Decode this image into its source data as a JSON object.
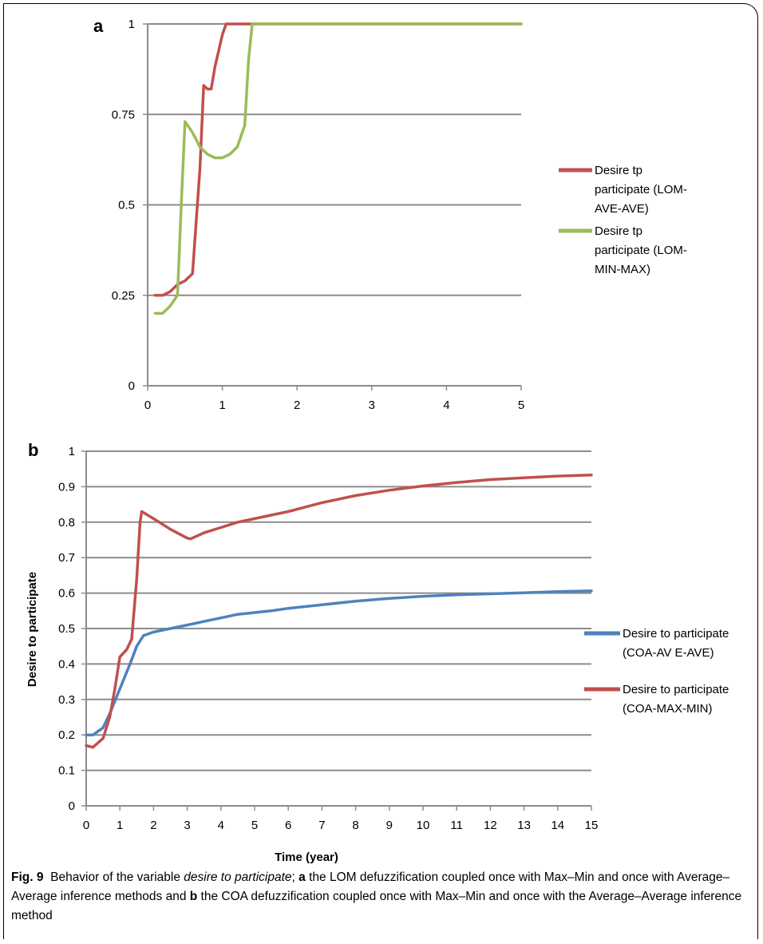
{
  "chart_data": [
    {
      "panel_label": "a",
      "type": "line",
      "xlim": [
        0,
        5
      ],
      "ylim": [
        0,
        1
      ],
      "x_ticks": [
        "0",
        "1",
        "2",
        "3",
        "4",
        "5"
      ],
      "y_ticks": [
        "0",
        "0.25",
        "0.5",
        "0.75",
        "1"
      ],
      "xlabel": "",
      "ylabel": "",
      "grid": "horizontal",
      "legend_position": "right",
      "series": [
        {
          "name": "Desire tp participate (LOM-AVE-AVE)",
          "legend_lines": [
            "Desire tp",
            "participate (LOM-",
            "AVE-AVE)"
          ],
          "color": "#c0504d",
          "points": [
            [
              0.1,
              0.25
            ],
            [
              0.2,
              0.25
            ],
            [
              0.3,
              0.26
            ],
            [
              0.4,
              0.28
            ],
            [
              0.5,
              0.29
            ],
            [
              0.6,
              0.31
            ],
            [
              0.7,
              0.6
            ],
            [
              0.75,
              0.83
            ],
            [
              0.8,
              0.82
            ],
            [
              0.85,
              0.82
            ],
            [
              0.9,
              0.88
            ],
            [
              1.0,
              0.97
            ],
            [
              1.05,
              1.0
            ],
            [
              1.2,
              1.0
            ],
            [
              1.4,
              1.0
            ],
            [
              5.0,
              1.0
            ]
          ]
        },
        {
          "name": "Desire tp participate (LOM-MIN-MAX)",
          "legend_lines": [
            "Desire tp",
            "participate (LOM-",
            "MIN-MAX)"
          ],
          "color": "#9bbb59",
          "points": [
            [
              0.1,
              0.2
            ],
            [
              0.2,
              0.2
            ],
            [
              0.3,
              0.22
            ],
            [
              0.4,
              0.25
            ],
            [
              0.45,
              0.5
            ],
            [
              0.5,
              0.73
            ],
            [
              0.6,
              0.7
            ],
            [
              0.7,
              0.66
            ],
            [
              0.8,
              0.64
            ],
            [
              0.9,
              0.63
            ],
            [
              1.0,
              0.63
            ],
            [
              1.1,
              0.64
            ],
            [
              1.2,
              0.66
            ],
            [
              1.3,
              0.72
            ],
            [
              1.35,
              0.9
            ],
            [
              1.4,
              1.0
            ],
            [
              5.0,
              1.0
            ]
          ]
        }
      ]
    },
    {
      "panel_label": "b",
      "type": "line",
      "xlim": [
        0,
        15
      ],
      "ylim": [
        0,
        1
      ],
      "x_ticks": [
        "0",
        "1",
        "2",
        "3",
        "4",
        "5",
        "6",
        "7",
        "8",
        "9",
        "10",
        "11",
        "12",
        "13",
        "14",
        "15"
      ],
      "y_ticks": [
        "0",
        "0.1",
        "0.2",
        "0.3",
        "0.4",
        "0.5",
        "0.6",
        "0.7",
        "0.8",
        "0.9",
        "1"
      ],
      "xlabel": "Time (year)",
      "ylabel": "Desire to participate",
      "grid": "horizontal",
      "legend_position": "right",
      "series": [
        {
          "name": "Desire to participate (COA-AVE-AVE)",
          "legend_lines": [
            "Desire to participate",
            "(COA-AV E-AVE)"
          ],
          "color": "#4f81bd",
          "points": [
            [
              0,
              0.2
            ],
            [
              0.2,
              0.2
            ],
            [
              0.5,
              0.22
            ],
            [
              0.7,
              0.26
            ],
            [
              1.0,
              0.33
            ],
            [
              1.3,
              0.4
            ],
            [
              1.5,
              0.45
            ],
            [
              1.7,
              0.48
            ],
            [
              2,
              0.49
            ],
            [
              2.5,
              0.5
            ],
            [
              3,
              0.51
            ],
            [
              3.5,
              0.52
            ],
            [
              4,
              0.53
            ],
            [
              4.5,
              0.54
            ],
            [
              5,
              0.545
            ],
            [
              5.5,
              0.55
            ],
            [
              6,
              0.557
            ],
            [
              7,
              0.567
            ],
            [
              8,
              0.577
            ],
            [
              9,
              0.585
            ],
            [
              10,
              0.591
            ],
            [
              11,
              0.595
            ],
            [
              12,
              0.598
            ],
            [
              13,
              0.601
            ],
            [
              14,
              0.604
            ],
            [
              15,
              0.606
            ]
          ]
        },
        {
          "name": "Desire to participate (COA-MAX-MIN)",
          "legend_lines": [
            "Desire to participate",
            "(COA-MAX-MIN)"
          ],
          "color": "#c0504d",
          "points": [
            [
              0,
              0.17
            ],
            [
              0.2,
              0.165
            ],
            [
              0.5,
              0.19
            ],
            [
              0.7,
              0.25
            ],
            [
              0.85,
              0.33
            ],
            [
              1.0,
              0.42
            ],
            [
              1.2,
              0.44
            ],
            [
              1.35,
              0.47
            ],
            [
              1.5,
              0.64
            ],
            [
              1.6,
              0.8
            ],
            [
              1.65,
              0.83
            ],
            [
              2,
              0.81
            ],
            [
              2.5,
              0.78
            ],
            [
              3,
              0.755
            ],
            [
              3.1,
              0.753
            ],
            [
              3.5,
              0.77
            ],
            [
              4,
              0.785
            ],
            [
              4.5,
              0.8
            ],
            [
              5,
              0.81
            ],
            [
              6,
              0.83
            ],
            [
              7,
              0.855
            ],
            [
              8,
              0.875
            ],
            [
              9,
              0.89
            ],
            [
              10,
              0.902
            ],
            [
              11,
              0.912
            ],
            [
              12,
              0.92
            ],
            [
              13,
              0.925
            ],
            [
              14,
              0.93
            ],
            [
              15,
              0.933
            ]
          ]
        }
      ]
    }
  ],
  "caption": {
    "fig_label": "Fig. 9",
    "part1": "Behavior of the variable ",
    "italic": "desire to participate",
    "part2": "; ",
    "a_label": "a",
    "part3": " the LOM defuzzification coupled once with Max–Min and once with Average–Average inference methods and ",
    "b_label": "b",
    "part4": " the COA defuzzification coupled once with Max–Min and once with the Average–Average inference method"
  }
}
